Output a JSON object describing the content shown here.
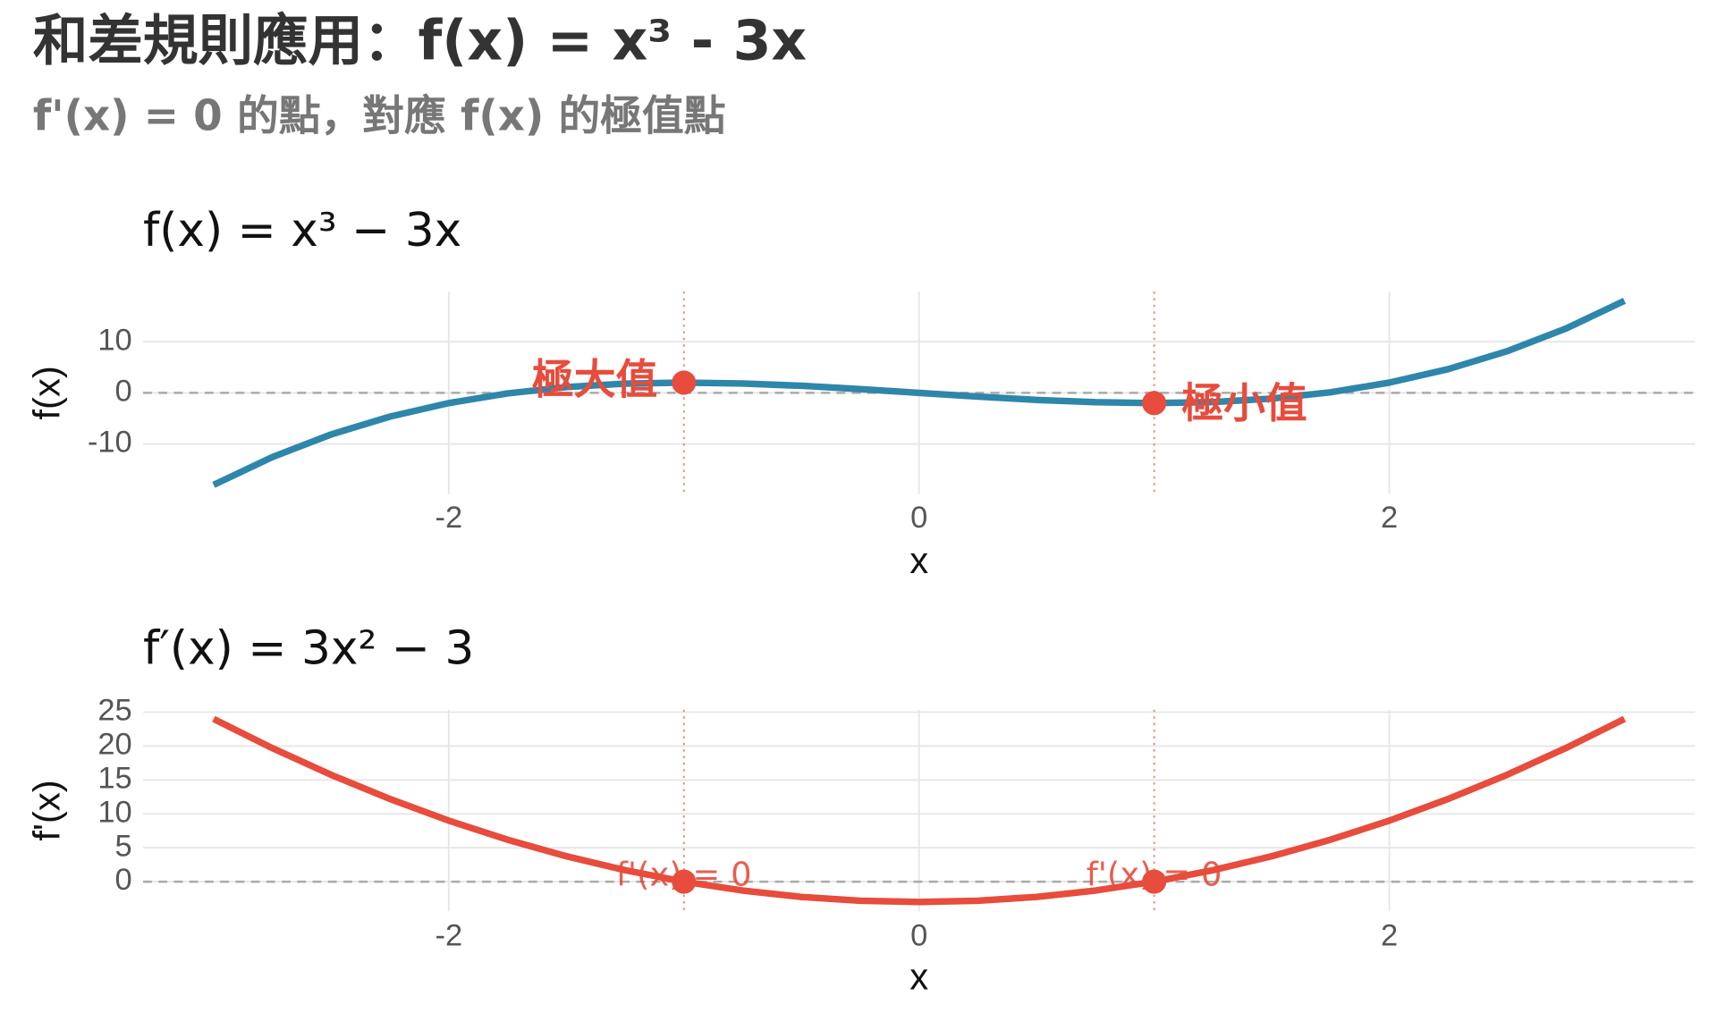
{
  "title": "和差規則應用：f(x) = x³ - 3x",
  "subtitle": "f'(x) = 0 的點，對應 f(x) 的極值點",
  "chart_data": [
    {
      "type": "line",
      "title": "f(x) = x³ − 3x",
      "x_label": "x",
      "y_label": "f(x)",
      "x": [
        -3,
        -2.75,
        -2.5,
        -2.25,
        -2,
        -1.75,
        -1.5,
        -1.25,
        -1,
        -0.75,
        -0.5,
        -0.25,
        0,
        0.25,
        0.5,
        0.75,
        1,
        1.25,
        1.5,
        1.75,
        2,
        2.25,
        2.5,
        2.75,
        3
      ],
      "series": [
        {
          "name": "f(x)",
          "color": "#2e86ab",
          "values": [
            -18,
            -12.55,
            -8.13,
            -4.64,
            -2,
            -0.11,
            1.13,
            1.8,
            2,
            1.83,
            1.38,
            0.73,
            0,
            -0.73,
            -1.38,
            -1.83,
            -2,
            -1.8,
            -1.13,
            0.11,
            2,
            4.64,
            8.13,
            12.55,
            18
          ]
        }
      ],
      "points": {
        "color": "#e74c3c",
        "x": [
          -1,
          1
        ],
        "y": [
          2,
          -2
        ],
        "labels": [
          "極大值",
          "極小值"
        ]
      },
      "hline": 0,
      "xlim": [
        -3.3,
        3.3
      ],
      "xticks": [
        -2,
        0,
        2
      ],
      "ylim": [
        -19.8,
        19.8
      ],
      "yticks": [
        -10,
        0,
        10
      ],
      "grid": true
    },
    {
      "type": "line",
      "title": "f′(x) = 3x² − 3",
      "x_label": "x",
      "y_label": "f'(x)",
      "x": [
        -3,
        -2.75,
        -2.5,
        -2.25,
        -2,
        -1.75,
        -1.5,
        -1.25,
        -1,
        -0.75,
        -0.5,
        -0.25,
        0,
        0.25,
        0.5,
        0.75,
        1,
        1.25,
        1.5,
        1.75,
        2,
        2.25,
        2.5,
        2.75,
        3
      ],
      "series": [
        {
          "name": "f'(x)",
          "color": "#e74c3c",
          "values": [
            24,
            19.69,
            15.75,
            12.19,
            9,
            6.19,
            3.75,
            1.69,
            0,
            -1.31,
            -2.25,
            -2.81,
            -3,
            -2.81,
            -2.25,
            -1.31,
            0,
            1.69,
            3.75,
            6.19,
            9,
            12.19,
            15.75,
            19.69,
            24
          ]
        }
      ],
      "points": {
        "color": "#e74c3c",
        "x": [
          -1,
          1
        ],
        "y": [
          0,
          0
        ],
        "labels": [
          "f'(x) = 0",
          "f'(x) = 0"
        ]
      },
      "hline": 0,
      "xlim": [
        -3.3,
        3.3
      ],
      "xticks": [
        -2,
        0,
        2
      ],
      "ylim": [
        -4.35,
        25.35
      ],
      "yticks": [
        0,
        5,
        10,
        15,
        20,
        25
      ],
      "grid": true
    }
  ]
}
